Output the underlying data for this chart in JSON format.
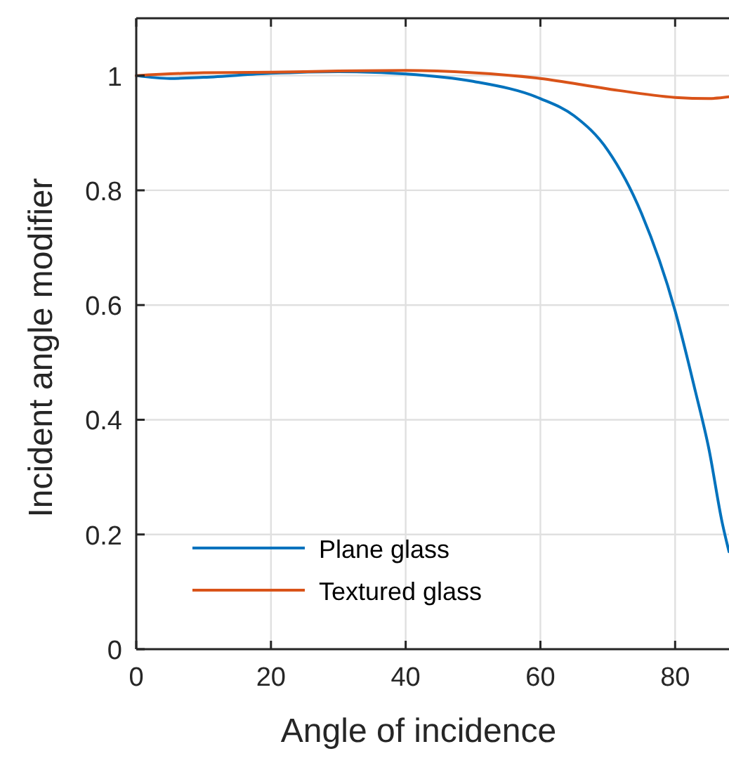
{
  "chart_data": {
    "type": "line",
    "xlabel": "Angle of incidence",
    "ylabel": "Incident angle modifier",
    "xlim": [
      0,
      88
    ],
    "xticks": [
      0,
      20,
      40,
      60,
      80
    ],
    "ylim": [
      0,
      1.1
    ],
    "yticks": [
      0,
      0.2,
      0.4,
      0.6,
      0.8,
      1
    ],
    "grid": true,
    "legend": "bottom",
    "line_style": "solid",
    "marker": "none",
    "series": [
      {
        "name": "Plane glass",
        "color": "#0072bd",
        "x": [
          0,
          5,
          10,
          20,
          30,
          40,
          50,
          60,
          65,
          70,
          75,
          80,
          83,
          85,
          87,
          88
        ],
        "values": [
          1.0,
          0.995,
          0.997,
          1.004,
          1.007,
          1.003,
          0.99,
          0.96,
          0.93,
          0.87,
          0.76,
          0.59,
          0.45,
          0.35,
          0.22,
          0.17
        ]
      },
      {
        "name": "Textured glass",
        "color": "#d95319",
        "x": [
          0,
          10,
          20,
          30,
          40,
          50,
          60,
          70,
          80,
          85,
          88
        ],
        "values": [
          1.0,
          1.005,
          1.006,
          1.008,
          1.009,
          1.005,
          0.995,
          0.977,
          0.962,
          0.96,
          0.963
        ]
      }
    ]
  }
}
